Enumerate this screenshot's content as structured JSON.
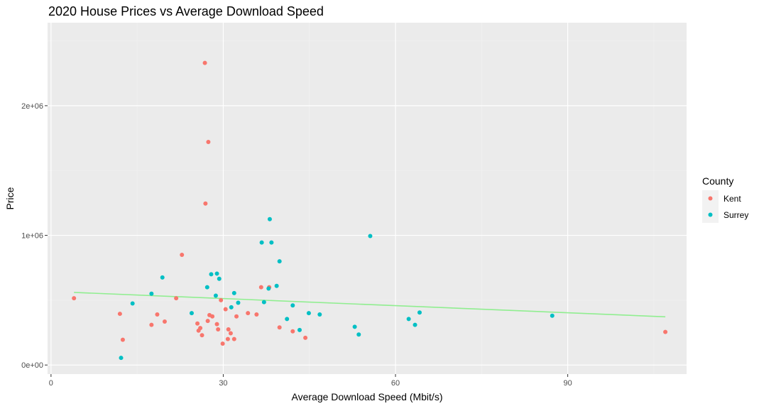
{
  "chart_data": {
    "type": "scatter",
    "title": "2020 House Prices vs Average Download Speed",
    "xlabel": "Average Download Speed (Mbit/s)",
    "ylabel": "Price",
    "xlim": [
      -0.6,
      110.7
    ],
    "ylim": [
      -70000,
      2640000
    ],
    "x_ticks": [
      0,
      30,
      60,
      90
    ],
    "x_tick_labels": [
      "0",
      "30",
      "60",
      "90"
    ],
    "y_ticks": [
      0,
      1000000,
      2000000
    ],
    "y_tick_labels": [
      "0e+00",
      "1e+06",
      "2e+06"
    ],
    "x_minor_ticks": [
      15,
      45,
      75,
      105
    ],
    "y_minor_ticks": [
      500000,
      1500000,
      2500000
    ],
    "grid": true,
    "background": "#ebebeb",
    "legend": {
      "title": "County",
      "position": "right"
    },
    "series": [
      {
        "name": "Kent",
        "color": "#f8766d",
        "points": [
          [
            4,
            515000
          ],
          [
            12,
            395000
          ],
          [
            12.5,
            195000
          ],
          [
            17.5,
            310000
          ],
          [
            18.5,
            390000
          ],
          [
            19.8,
            335000
          ],
          [
            21.8,
            515000
          ],
          [
            22.8,
            850000
          ],
          [
            25.5,
            320000
          ],
          [
            25.7,
            265000
          ],
          [
            26,
            285000
          ],
          [
            26.3,
            230000
          ],
          [
            26.8,
            2330000
          ],
          [
            26.9,
            1245000
          ],
          [
            27.4,
            1720000
          ],
          [
            27.3,
            340000
          ],
          [
            27.6,
            385000
          ],
          [
            28.1,
            375000
          ],
          [
            28.9,
            315000
          ],
          [
            29.1,
            275000
          ],
          [
            29.6,
            500000
          ],
          [
            29.9,
            165000
          ],
          [
            30.4,
            430000
          ],
          [
            30.8,
            200000
          ],
          [
            30.9,
            275000
          ],
          [
            31.3,
            245000
          ],
          [
            31.9,
            200000
          ],
          [
            32.3,
            375000
          ],
          [
            34.3,
            400000
          ],
          [
            35.8,
            390000
          ],
          [
            36.6,
            600000
          ],
          [
            38,
            600000
          ],
          [
            39.8,
            290000
          ],
          [
            42.1,
            260000
          ],
          [
            44.3,
            210000
          ],
          [
            107,
            255000
          ]
        ]
      },
      {
        "name": "Surrey",
        "color": "#00bfc4",
        "points": [
          [
            12.2,
            55000
          ],
          [
            14.2,
            475000
          ],
          [
            17.5,
            550000
          ],
          [
            19.4,
            675000
          ],
          [
            24.5,
            400000
          ],
          [
            27.2,
            600000
          ],
          [
            27.9,
            700000
          ],
          [
            28.7,
            535000
          ],
          [
            28.9,
            705000
          ],
          [
            29.3,
            665000
          ],
          [
            31.4,
            445000
          ],
          [
            31.9,
            555000
          ],
          [
            32.6,
            480000
          ],
          [
            36.7,
            945000
          ],
          [
            37.1,
            485000
          ],
          [
            37.9,
            590000
          ],
          [
            38.1,
            1125000
          ],
          [
            38.4,
            945000
          ],
          [
            39.3,
            610000
          ],
          [
            39.8,
            800000
          ],
          [
            41.1,
            355000
          ],
          [
            42.1,
            460000
          ],
          [
            43.3,
            270000
          ],
          [
            44.9,
            400000
          ],
          [
            46.8,
            390000
          ],
          [
            52.9,
            295000
          ],
          [
            53.6,
            235000
          ],
          [
            55.6,
            995000
          ],
          [
            62.3,
            355000
          ],
          [
            63.4,
            310000
          ],
          [
            64.2,
            405000
          ],
          [
            87.3,
            380000
          ]
        ]
      }
    ],
    "trend_line": {
      "color": "#90ee90",
      "x": [
        4,
        107
      ],
      "y": [
        560000,
        372000
      ]
    }
  }
}
